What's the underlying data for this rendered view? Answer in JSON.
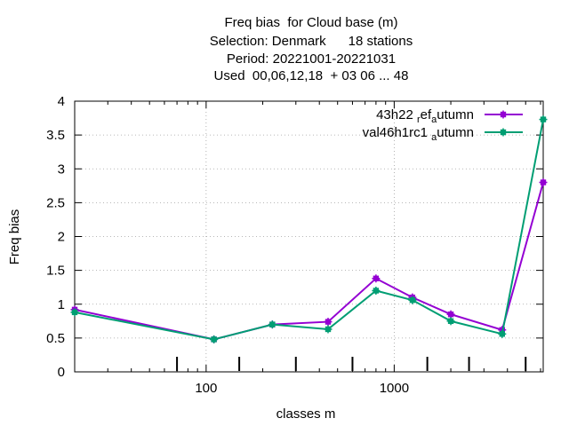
{
  "title_lines": [
    "Freq bias  for Cloud base (m)",
    "Selection: Denmark      18 stations",
    "Period: 20221001-20221031",
    "Used  00,06,12,18  + 03 06 ... 48"
  ],
  "chart_data": {
    "type": "line",
    "xlabel": "classes m",
    "ylabel": "Freq bias",
    "xscale": "log",
    "xlim": [
      20,
      6200
    ],
    "ylim": [
      0,
      4
    ],
    "yticks": [
      {
        "v": 0,
        "label": "0"
      },
      {
        "v": 0.5,
        "label": "0.5"
      },
      {
        "v": 1,
        "label": "1"
      },
      {
        "v": 1.5,
        "label": "1.5"
      },
      {
        "v": 2,
        "label": "2"
      },
      {
        "v": 2.5,
        "label": "2.5"
      },
      {
        "v": 3,
        "label": "3"
      },
      {
        "v": 3.5,
        "label": "3.5"
      },
      {
        "v": 4,
        "label": "4"
      }
    ],
    "xticks": [
      {
        "v": 100,
        "label": "100"
      },
      {
        "v": 1000,
        "label": "1000"
      }
    ],
    "grid": true,
    "legend_position": "top-right",
    "class_marks": [
      70,
      150,
      300,
      600,
      1500,
      2500,
      5000
    ],
    "series": [
      {
        "name": "43h22_ref_autumn",
        "legend_main": "43h22",
        "legend_parts": [
          {
            "text": "43h22 ",
            "shift": 0
          },
          {
            "text": "r",
            "shift": 1
          },
          {
            "text": "ef",
            "shift": 0
          },
          {
            "text": "a",
            "shift": 1
          },
          {
            "text": "utumn",
            "shift": 0
          }
        ],
        "color": "#9400d3",
        "x": [
          20,
          110,
          225,
          445,
          800,
          1250,
          2000,
          3750,
          6200
        ],
        "y": [
          0.92,
          0.48,
          0.7,
          0.74,
          1.38,
          1.1,
          0.85,
          0.62,
          2.8
        ]
      },
      {
        "name": "val46h1rc1_autumn",
        "legend_parts": [
          {
            "text": "val46h1rc1 ",
            "shift": 0
          },
          {
            "text": "a",
            "shift": 1
          },
          {
            "text": "utumn",
            "shift": 0
          }
        ],
        "color": "#009e73",
        "x": [
          20,
          110,
          225,
          445,
          800,
          1250,
          2000,
          3750,
          6200
        ],
        "y": [
          0.88,
          0.48,
          0.7,
          0.63,
          1.2,
          1.06,
          0.75,
          0.56,
          3.73
        ]
      }
    ]
  }
}
